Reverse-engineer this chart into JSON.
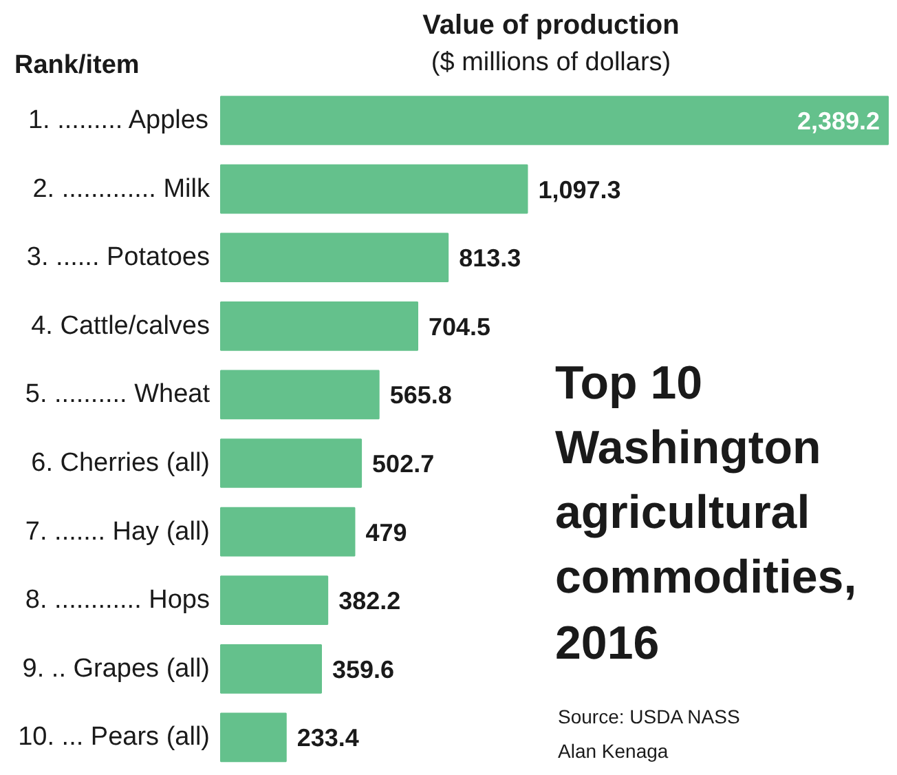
{
  "chart_data": {
    "type": "bar",
    "orientation": "horizontal",
    "title": "Top 10 Washington agricultural commodities, 2016",
    "xlabel": "Value of production",
    "subtitle": "($ millions of dollars)",
    "ylabel": "Rank/item",
    "categories": [
      "1. ......... Apples",
      "2. ............. Milk",
      "3. ...... Potatoes",
      "4. Cattle/calves",
      "5. .......... Wheat",
      "6. Cherries (all)",
      "7. ....... Hay (all)",
      "8. ............ Hops",
      "9. .. Grapes (all)",
      "10. ... Pears (all)"
    ],
    "values": [
      2389.2,
      1097.3,
      813.3,
      704.5,
      565.8,
      502.7,
      479,
      382.2,
      359.6,
      233.4
    ],
    "value_labels": [
      "2,389.2",
      "1,097.3",
      "813.3",
      "704.5",
      "565.8",
      "502.7",
      "479",
      "382.2",
      "359.6",
      "233.4"
    ],
    "color": "#64c18c",
    "annotations": [
      "Source: USDA NASS",
      "Alan Kenaga"
    ]
  }
}
